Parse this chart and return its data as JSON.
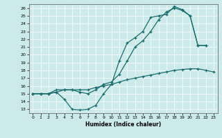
{
  "xlabel": "Humidex (Indice chaleur)",
  "bg_color": "#cceaea",
  "line_color": "#1a6b6b",
  "xlim": [
    -0.5,
    23.5
  ],
  "ylim": [
    12.5,
    26.5
  ],
  "xticks": [
    0,
    1,
    2,
    3,
    4,
    5,
    6,
    7,
    8,
    9,
    10,
    11,
    12,
    13,
    14,
    15,
    16,
    17,
    18,
    19,
    20,
    21,
    22,
    23
  ],
  "yticks": [
    13,
    14,
    15,
    16,
    17,
    18,
    19,
    20,
    21,
    22,
    23,
    24,
    25,
    26
  ],
  "line1_x": [
    0,
    1,
    2,
    3,
    4,
    5,
    6,
    7,
    8,
    9,
    10,
    11,
    12,
    13,
    14,
    15,
    16,
    17,
    18,
    19,
    20,
    21,
    22
  ],
  "line1_y": [
    15,
    15,
    15,
    15.2,
    14.3,
    13.0,
    12.9,
    13.0,
    13.5,
    15.0,
    16.2,
    19.2,
    21.5,
    22.2,
    23.0,
    24.8,
    25.0,
    25.2,
    26.2,
    25.8,
    25.0,
    21.2,
    21.2
  ],
  "line2_x": [
    0,
    1,
    2,
    3,
    4,
    5,
    6,
    7,
    8,
    9,
    10,
    11,
    12,
    13,
    14,
    15,
    16,
    17,
    18,
    19,
    20,
    21,
    22
  ],
  "line2_y": [
    15,
    15,
    15,
    15.5,
    15.5,
    15.5,
    15.2,
    15.0,
    15.5,
    16.2,
    16.5,
    17.5,
    19.2,
    21.0,
    21.8,
    23.0,
    24.5,
    25.5,
    26.0,
    25.7,
    25.0,
    21.2,
    21.2
  ],
  "line3_x": [
    0,
    1,
    2,
    3,
    4,
    5,
    6,
    7,
    8,
    9,
    10,
    11,
    12,
    13,
    14,
    15,
    16,
    17,
    18,
    19,
    20,
    21,
    22,
    23
  ],
  "line3_y": [
    15,
    15,
    15,
    15.2,
    15.5,
    15.5,
    15.5,
    15.5,
    15.8,
    16.0,
    16.2,
    16.5,
    16.8,
    17.0,
    17.2,
    17.4,
    17.6,
    17.8,
    18.0,
    18.1,
    18.2,
    18.2,
    18.0,
    17.8
  ]
}
